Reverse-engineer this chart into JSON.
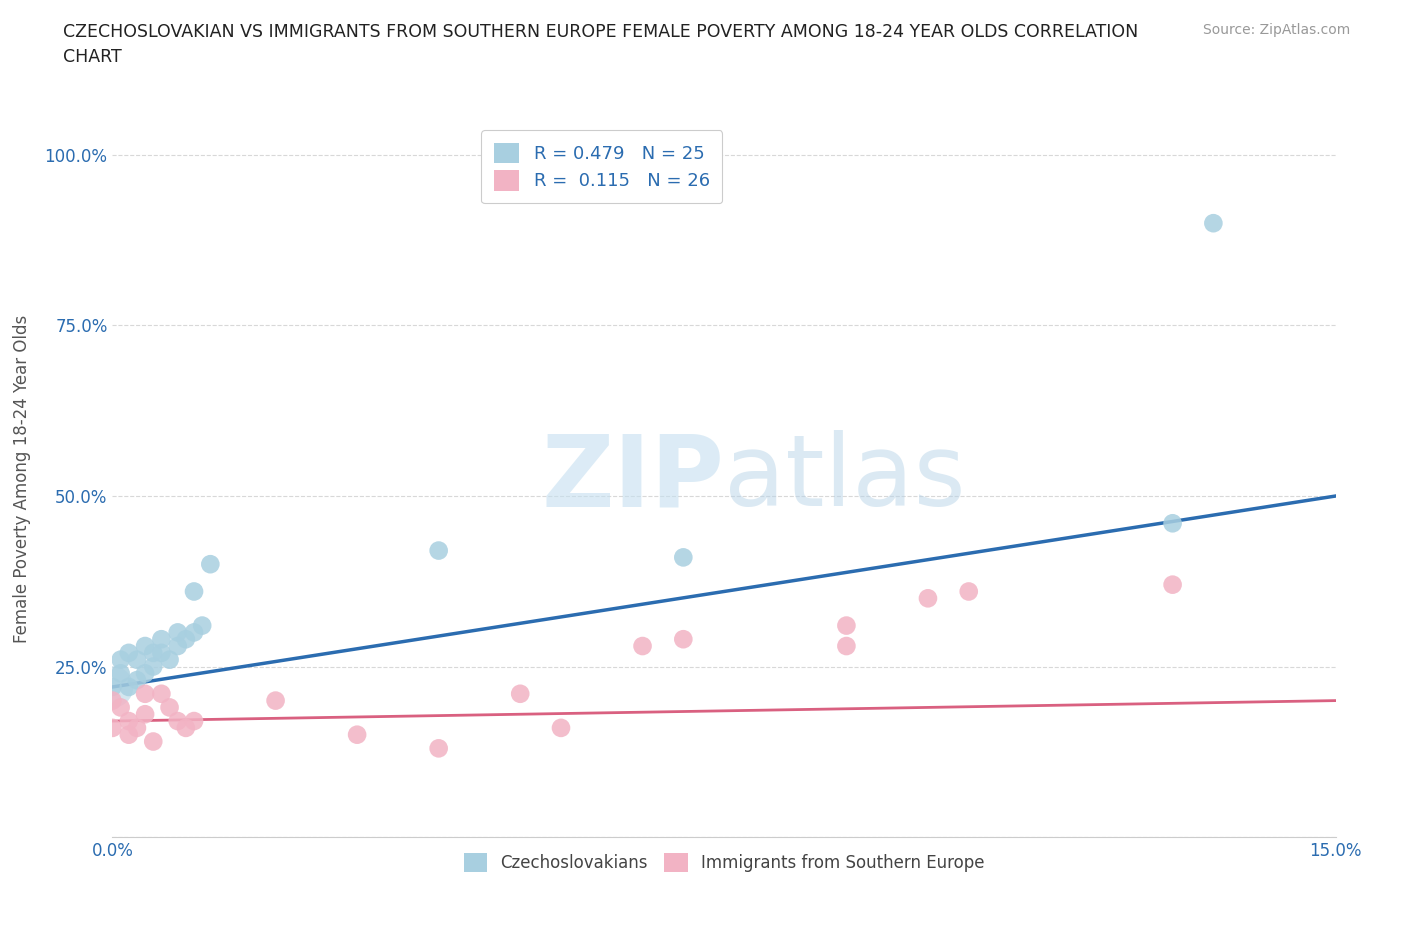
{
  "title": "CZECHOSLOVAKIAN VS IMMIGRANTS FROM SOUTHERN EUROPE FEMALE POVERTY AMONG 18-24 YEAR OLDS CORRELATION\nCHART",
  "source": "Source: ZipAtlas.com",
  "ylabel": "Female Poverty Among 18-24 Year Olds",
  "xlim": [
    0.0,
    0.15
  ],
  "ylim": [
    0.0,
    1.05
  ],
  "yticks": [
    0.0,
    0.25,
    0.5,
    0.75,
    1.0
  ],
  "ytick_labels": [
    "",
    "25.0%",
    "50.0%",
    "75.0%",
    "100.0%"
  ],
  "xtick_positions": [
    0.0,
    0.015,
    0.03,
    0.045,
    0.06,
    0.075,
    0.09,
    0.105,
    0.12,
    0.135,
    0.15
  ],
  "blue_color": "#a8cfe0",
  "pink_color": "#f2b3c4",
  "blue_line_color": "#2b6cb0",
  "pink_line_color": "#d96080",
  "R_blue": 0.479,
  "N_blue": 25,
  "R_pink": 0.115,
  "N_pink": 26,
  "blue_x": [
    0.0,
    0.001,
    0.001,
    0.002,
    0.002,
    0.003,
    0.003,
    0.004,
    0.004,
    0.005,
    0.005,
    0.006,
    0.006,
    0.007,
    0.008,
    0.008,
    0.009,
    0.01,
    0.01,
    0.011,
    0.012,
    0.04,
    0.07,
    0.13,
    0.135
  ],
  "blue_y": [
    0.22,
    0.24,
    0.26,
    0.22,
    0.27,
    0.23,
    0.26,
    0.24,
    0.28,
    0.25,
    0.27,
    0.27,
    0.29,
    0.26,
    0.28,
    0.3,
    0.29,
    0.3,
    0.36,
    0.31,
    0.4,
    0.42,
    0.41,
    0.46,
    0.9
  ],
  "pink_x": [
    0.0,
    0.0,
    0.001,
    0.002,
    0.002,
    0.003,
    0.004,
    0.004,
    0.005,
    0.006,
    0.007,
    0.008,
    0.009,
    0.01,
    0.02,
    0.03,
    0.04,
    0.05,
    0.055,
    0.065,
    0.07,
    0.09,
    0.09,
    0.1,
    0.105,
    0.13
  ],
  "pink_y": [
    0.2,
    0.16,
    0.19,
    0.15,
    0.17,
    0.16,
    0.18,
    0.21,
    0.14,
    0.21,
    0.19,
    0.17,
    0.16,
    0.17,
    0.2,
    0.15,
    0.13,
    0.21,
    0.16,
    0.28,
    0.29,
    0.28,
    0.31,
    0.35,
    0.36,
    0.37
  ],
  "background_color": "#ffffff",
  "grid_color": "#d8d8d8",
  "watermark_color": "#dceef6"
}
